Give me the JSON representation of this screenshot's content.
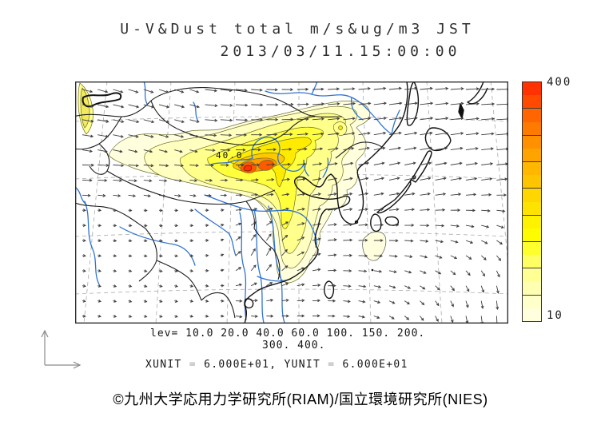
{
  "title": {
    "line1": "U-V&Dust total m/s&ug/m3 JST",
    "line2": "2013/03/11.15:00:00"
  },
  "map": {
    "contour_inline_label": "40.0"
  },
  "legend": {
    "lev_line1": "lev= 10.0 20.0 40.0 60.0 100. 150. 200.",
    "lev_line2": "300. 400.",
    "xunit_label": "XUNIT",
    "equals": "=",
    "xunit_value": "6.000E+01,",
    "yunit_label": "YUNIT",
    "yunit_value": "6.000E+01"
  },
  "colorbar": {
    "max_label": "400",
    "min_label": "10",
    "colors": [
      "#FF3200",
      "#FF4A00",
      "#FF6500",
      "#FF7A00",
      "#FF9100",
      "#FFA300",
      "#FFB700",
      "#FFC400",
      "#FFD600",
      "#FFE300",
      "#FFF200",
      "#FFFB00",
      "#FFFF2E",
      "#FFFF64",
      "#FFFF93",
      "#FFFFB2",
      "#FFFFC9",
      "#FFFFDE"
    ]
  },
  "footer": {
    "copyright": "©九州大学応用力学研究所(RIAM)/国立環境研究所(NIES)"
  },
  "colors": {
    "river": "#2f74d0",
    "coast": "#111111",
    "border_line": "#1c1c1c",
    "graticule": "#9c9c9c",
    "arrow": "#3d3d3d",
    "contour_stroke": "#70702e"
  },
  "chart_data": {
    "type": "heatmap",
    "title": "U-V&Dust total m/s&ug/m3 JST",
    "subtitle": "2013/03/11.15:00:00",
    "contour_levels": [
      10.0,
      20.0,
      40.0,
      60.0,
      100,
      150,
      200,
      300,
      400
    ],
    "colorbar_range": [
      10,
      400
    ],
    "colorbar_tick_labels": [
      "400",
      "10"
    ],
    "inline_contour_label": 40.0,
    "xunit": "6.000E+01",
    "yunit": "6.000E+01",
    "legend_position": "right",
    "overlay": "wind vector field (U-V) on dust concentration filled contours"
  }
}
